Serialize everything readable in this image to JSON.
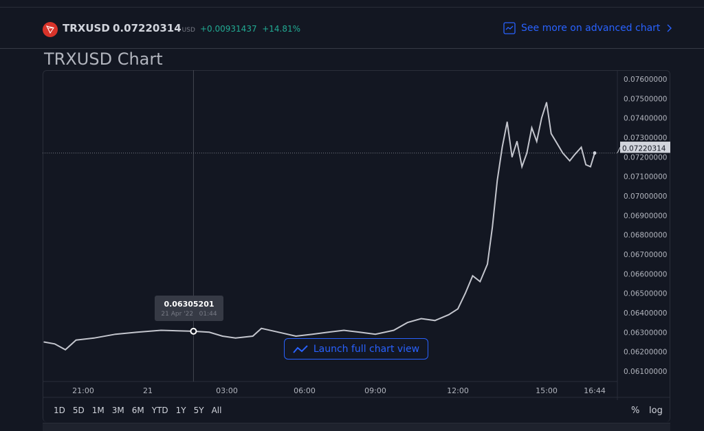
{
  "header": {
    "symbol": "TRXUSD",
    "price": "0.07220314",
    "currency": "USD",
    "change": "+0.00931437",
    "change_pct": "+14.81%",
    "advanced_link": "See more on advanced chart"
  },
  "page_title": "TRXUSD Chart",
  "tooltip": {
    "value": "0.06305201",
    "date": "21 Apr '22",
    "time": "01:44"
  },
  "launch_button": "Launch full chart view",
  "periods": [
    "1D",
    "5D",
    "1M",
    "3M",
    "6M",
    "YTD",
    "1Y",
    "5Y",
    "All"
  ],
  "scale_buttons": {
    "percent": "%",
    "log": "log"
  },
  "colors": {
    "background": "#131722",
    "line": "#c4c6ce",
    "accent": "#2962ff",
    "positive": "#22ab94",
    "logo": "#d8332a"
  },
  "chart_data": {
    "type": "line",
    "y_ticks": [
      "0.07600000",
      "0.07500000",
      "0.07400000",
      "0.07300000",
      "0.07200000",
      "0.07100000",
      "0.07000000",
      "0.06900000",
      "0.06800000",
      "0.06700000",
      "0.06600000",
      "0.06500000",
      "0.06400000",
      "0.06300000",
      "0.06200000",
      "0.06100000"
    ],
    "x_ticks": [
      "21:00",
      "21",
      "03:00",
      "06:00",
      "09:00",
      "12:00",
      "15:00",
      "16:44"
    ],
    "ylim": [
      0.0606,
      0.0763
    ],
    "last_price_label": "0.07220314",
    "x": [
      "19:10",
      "19:40",
      "20:10",
      "20:40",
      "21:30",
      "22:30",
      "23:30",
      "00:30",
      "01:44",
      "02:20",
      "02:50",
      "03:20",
      "04:00",
      "04:20",
      "05:00",
      "05:40",
      "06:20",
      "07:00",
      "07:40",
      "08:20",
      "09:00",
      "09:40",
      "10:10",
      "10:40",
      "11:10",
      "11:40",
      "12:00",
      "12:15",
      "12:30",
      "12:45",
      "13:00",
      "13:10",
      "13:20",
      "13:30",
      "13:40",
      "13:50",
      "14:00",
      "14:10",
      "14:20",
      "14:30",
      "14:40",
      "14:50",
      "15:00",
      "15:10",
      "15:20",
      "15:35",
      "15:50",
      "16:00",
      "16:15",
      "16:25",
      "16:35",
      "16:44"
    ],
    "values": [
      0.0625,
      0.0624,
      0.0621,
      0.0626,
      0.0627,
      0.0629,
      0.063,
      0.0631,
      0.06305201,
      0.063,
      0.0628,
      0.0627,
      0.0628,
      0.0632,
      0.063,
      0.0628,
      0.0629,
      0.063,
      0.0631,
      0.063,
      0.0629,
      0.0631,
      0.0635,
      0.0637,
      0.0636,
      0.0639,
      0.0642,
      0.065,
      0.0659,
      0.0656,
      0.0665,
      0.0684,
      0.0708,
      0.0725,
      0.0738,
      0.072,
      0.0728,
      0.0715,
      0.0722,
      0.0735,
      0.0728,
      0.074,
      0.0748,
      0.0732,
      0.0728,
      0.0722,
      0.0718,
      0.0721,
      0.0725,
      0.0716,
      0.0715,
      0.07220314
    ],
    "grid": false
  }
}
